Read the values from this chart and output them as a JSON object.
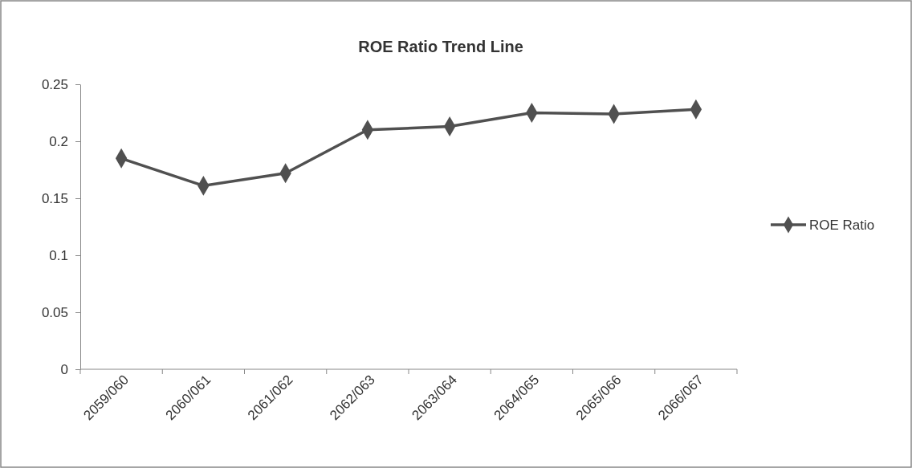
{
  "chart_data": {
    "type": "line",
    "title": "ROE Ratio Trend Line",
    "categories": [
      "2059/060",
      "2060/061",
      "2061/062",
      "2062/063",
      "2063/064",
      "2064/065",
      "2065/066",
      "2066/067"
    ],
    "series": [
      {
        "name": "ROE Ratio",
        "color": "#505050",
        "values": [
          0.185,
          0.161,
          0.172,
          0.21,
          0.213,
          0.225,
          0.224,
          0.228
        ]
      }
    ],
    "ylim": [
      0,
      0.25
    ],
    "yticks": [
      0,
      0.05,
      0.1,
      0.15,
      0.2,
      0.25
    ],
    "grid": false,
    "legend": "right",
    "marker": "diamond",
    "line_style": "solid"
  }
}
